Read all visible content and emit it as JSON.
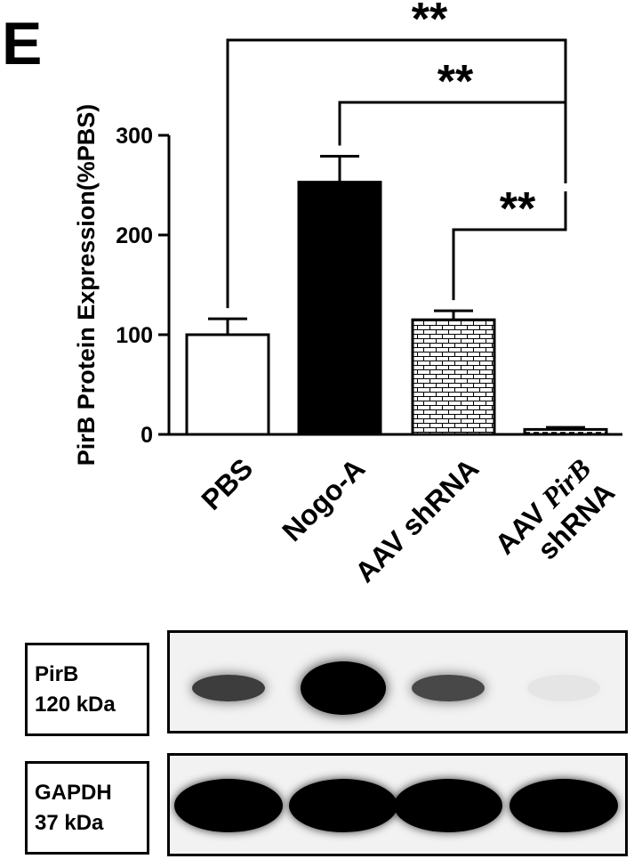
{
  "panel_label": "E",
  "chart_data": {
    "type": "bar",
    "ylabel": "PirB Protein Expression(%PBS)",
    "ylim": [
      0,
      300
    ],
    "yticks": [
      0,
      100,
      200,
      300
    ],
    "categories": [
      {
        "lines": [
          {
            "text": "PBS"
          }
        ]
      },
      {
        "lines": [
          {
            "text": "Nogo-A"
          }
        ]
      },
      {
        "lines": [
          {
            "text": "AAV shRNA"
          }
        ]
      },
      {
        "lines": [
          {
            "parts": [
              {
                "text": "AAV "
              },
              {
                "text": "PirB",
                "italic": true
              }
            ]
          },
          {
            "text": "shRNA"
          }
        ]
      }
    ],
    "values": [
      100,
      253,
      115,
      5
    ],
    "errors": [
      16,
      26,
      9,
      2
    ],
    "fills": [
      "white",
      "black",
      "brick",
      "dashed"
    ],
    "significance": [
      {
        "from": 0,
        "to": 3,
        "label": "**"
      },
      {
        "from": 1,
        "to": 3,
        "label": "**"
      },
      {
        "from": 2,
        "to": 3,
        "label": "**"
      }
    ]
  },
  "blots": [
    {
      "protein": "PirB",
      "size": "120 kDa",
      "intensities": [
        0.75,
        1.0,
        0.7,
        0.05
      ]
    },
    {
      "protein": "GAPDH",
      "size": "37 kDa",
      "intensities": [
        1.0,
        1.0,
        1.0,
        1.0
      ]
    }
  ]
}
